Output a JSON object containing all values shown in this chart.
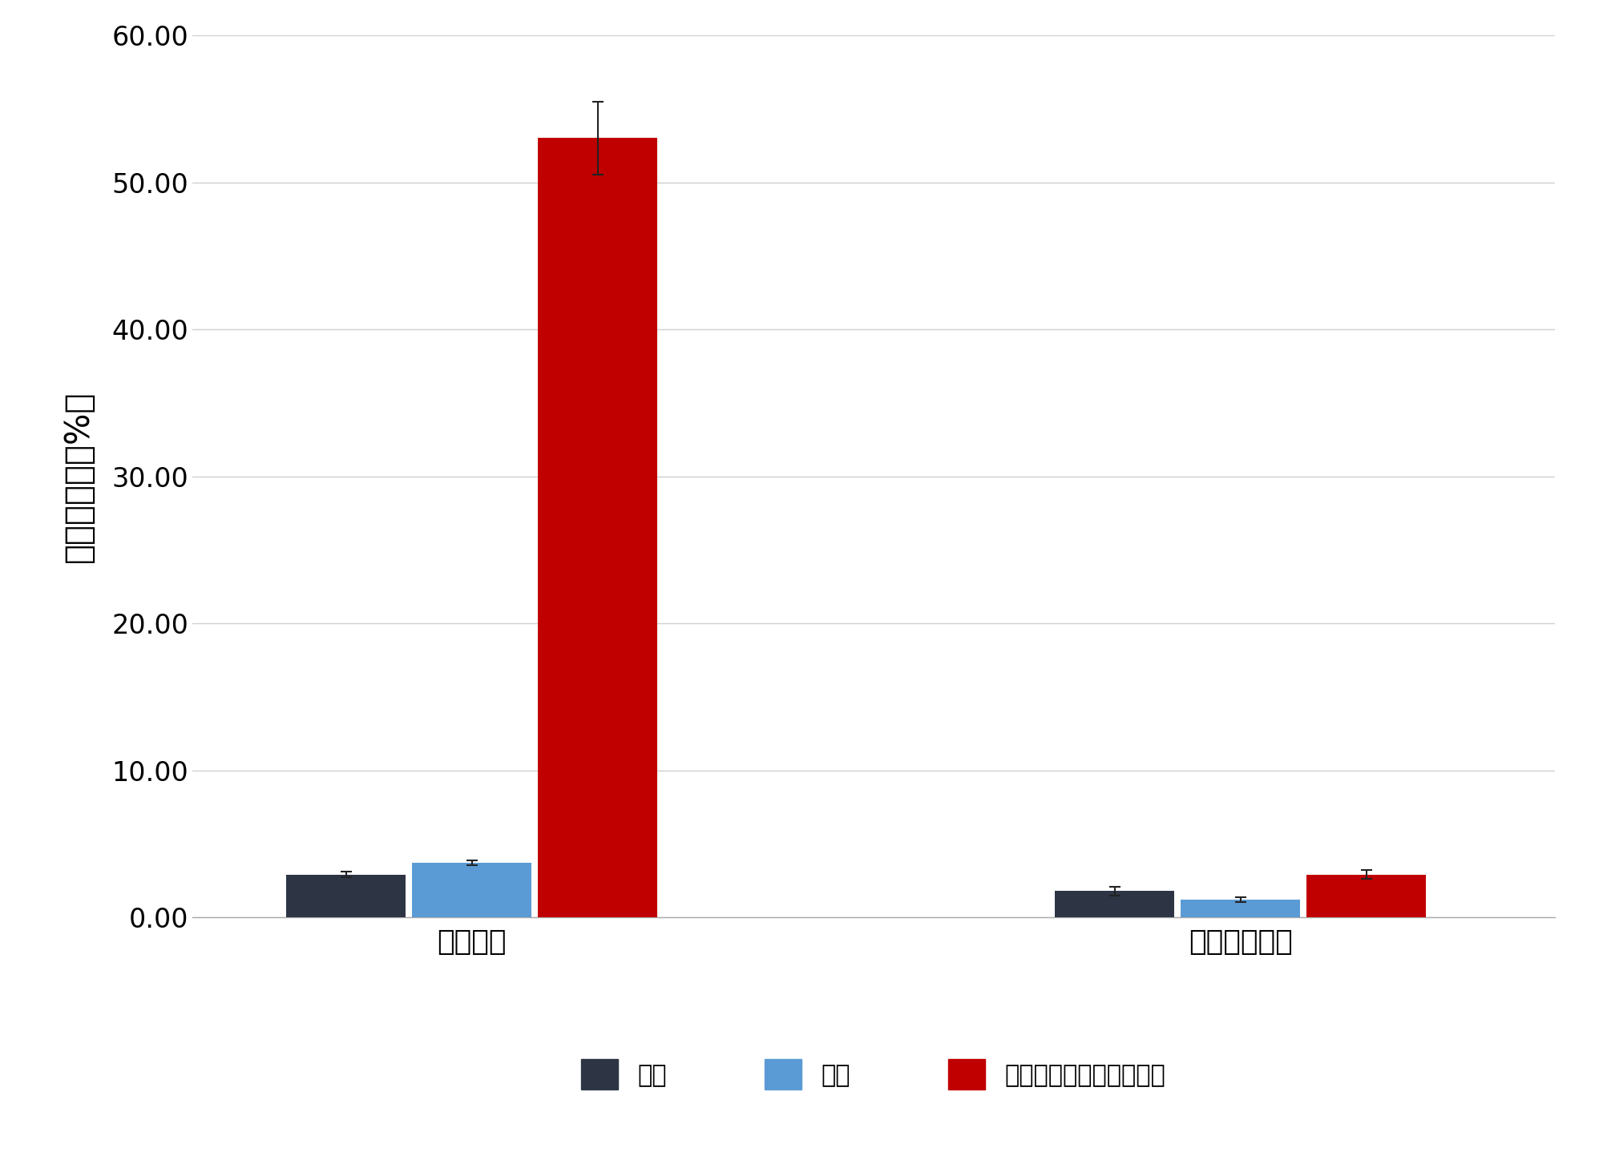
{
  "groups": [
    "切れ残り",
    "非特異的切断"
  ],
  "series": [
    "手動",
    "自動",
    "固定化トリプシンキット"
  ],
  "values": [
    [
      2.9,
      3.7,
      53.0
    ],
    [
      1.8,
      1.2,
      2.9
    ]
  ],
  "errors": [
    [
      0.2,
      0.15,
      2.5
    ],
    [
      0.3,
      0.15,
      0.3
    ]
  ],
  "colors": [
    "#2d3545",
    "#5b9bd5",
    "#c00000"
  ],
  "ylabel": "相対存在量（%）",
  "ylim": [
    0,
    60
  ],
  "yticks": [
    0.0,
    10.0,
    20.0,
    30.0,
    40.0,
    50.0,
    60.0
  ],
  "ytick_labels": [
    "0.00",
    "10.00",
    "20.00",
    "30.00",
    "40.00",
    "50.00",
    "60.00"
  ],
  "legend_labels": [
    "手動",
    "自動",
    "固定化トリプシンキット"
  ],
  "bar_width": 0.18,
  "background_color": "#ffffff",
  "grid_color": "#d0d0d0",
  "ylabel_fontsize": 30,
  "tick_fontsize": 24,
  "legend_fontsize": 22,
  "xlabel_fontsize": 26
}
